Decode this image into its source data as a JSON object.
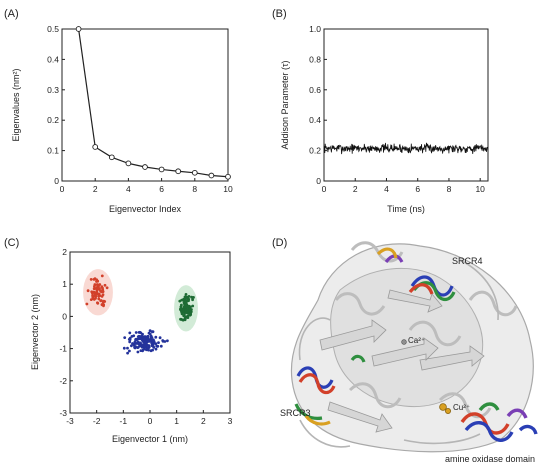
{
  "panels": {
    "a": {
      "letter": "(A)"
    },
    "b": {
      "letter": "(B)"
    },
    "c": {
      "letter": "(C)"
    },
    "d": {
      "letter": "(D)"
    }
  },
  "chart_data": [
    {
      "id": "A",
      "type": "line",
      "xlabel": "Eigenvector Index",
      "ylabel": "Eigenvalues (nm²)",
      "x": [
        1,
        2,
        3,
        4,
        5,
        6,
        7,
        8,
        9,
        10
      ],
      "series": [
        {
          "values": [
            0.5,
            0.112,
            0.078,
            0.058,
            0.046,
            0.038,
            0.032,
            0.027,
            0.018,
            0.014
          ],
          "color": "#222222",
          "marker": "open-circle"
        }
      ],
      "xlim": [
        0,
        10
      ],
      "ylim": [
        0,
        0.5
      ],
      "xticks": [
        "0",
        "2",
        "4",
        "6",
        "8",
        "10"
      ],
      "yticks": [
        "0",
        "0.1",
        "0.2",
        "0.3",
        "0.4",
        "0.5"
      ],
      "grid": false
    },
    {
      "id": "B",
      "type": "line",
      "xlabel": "Time (ns)",
      "ylabel": "Addison Parameter (τ)",
      "x_range": [
        0,
        10.5
      ],
      "y_mean": 0.215,
      "y_spread": 0.045,
      "n_points": 420,
      "series": [
        {
          "color": "#111111"
        }
      ],
      "xlim": [
        0,
        10.5
      ],
      "ylim": [
        0,
        1.0
      ],
      "xticks": [
        "0",
        "2",
        "4",
        "6",
        "8",
        "10"
      ],
      "yticks": [
        "0",
        "0.2",
        "0.4",
        "0.6",
        "0.8",
        "1.0"
      ],
      "grid": false
    },
    {
      "id": "C",
      "type": "scatter",
      "xlabel": "Eigenvector 1 (nm)",
      "ylabel": "Eigenvector 2 (nm)",
      "xlim": [
        -3,
        3
      ],
      "ylim": [
        -3,
        2
      ],
      "xticks": [
        "-3",
        "-2",
        "-1",
        "0",
        "1",
        "2",
        "3"
      ],
      "yticks": [
        "-3",
        "-2",
        "-1",
        "0",
        "1",
        "2"
      ],
      "grid": false,
      "clusters": [
        {
          "color": "#d2402a",
          "shade": "#f6c9c0",
          "center": [
            -1.95,
            0.75
          ],
          "spread": [
            0.35,
            0.45
          ],
          "n": 70,
          "x_range": [
            -2.55,
            -1.25
          ],
          "y_range": [
            -0.1,
            1.85
          ]
        },
        {
          "color": "#24339b",
          "shade": null,
          "center": [
            -0.2,
            -0.8
          ],
          "spread": [
            0.7,
            0.33
          ],
          "n": 150,
          "x_range": [
            -1.6,
            1.45
          ],
          "y_range": [
            -1.85,
            0.1
          ]
        },
        {
          "color": "#1e6b34",
          "shade": "#bfe3c6",
          "center": [
            1.35,
            0.25
          ],
          "spread": [
            0.28,
            0.45
          ],
          "n": 100,
          "x_range": [
            0.8,
            2.15
          ],
          "y_range": [
            -0.85,
            1.25
          ]
        }
      ]
    }
  ],
  "structure": {
    "labels": {
      "srcr4": "SRCR4",
      "srcr3": "SRCR3",
      "amine": "amine oxidase domain",
      "ca": "Ca²⁺",
      "cu": "Cu²⁺"
    },
    "colors": {
      "ribbon": "#e4e4e4",
      "ribbon_dark": "#a9a9a9",
      "blue": "#2a3fb5",
      "red": "#d2402a",
      "green": "#2f8f3f",
      "purple": "#7a3fb5",
      "gold": "#d9a021"
    }
  }
}
